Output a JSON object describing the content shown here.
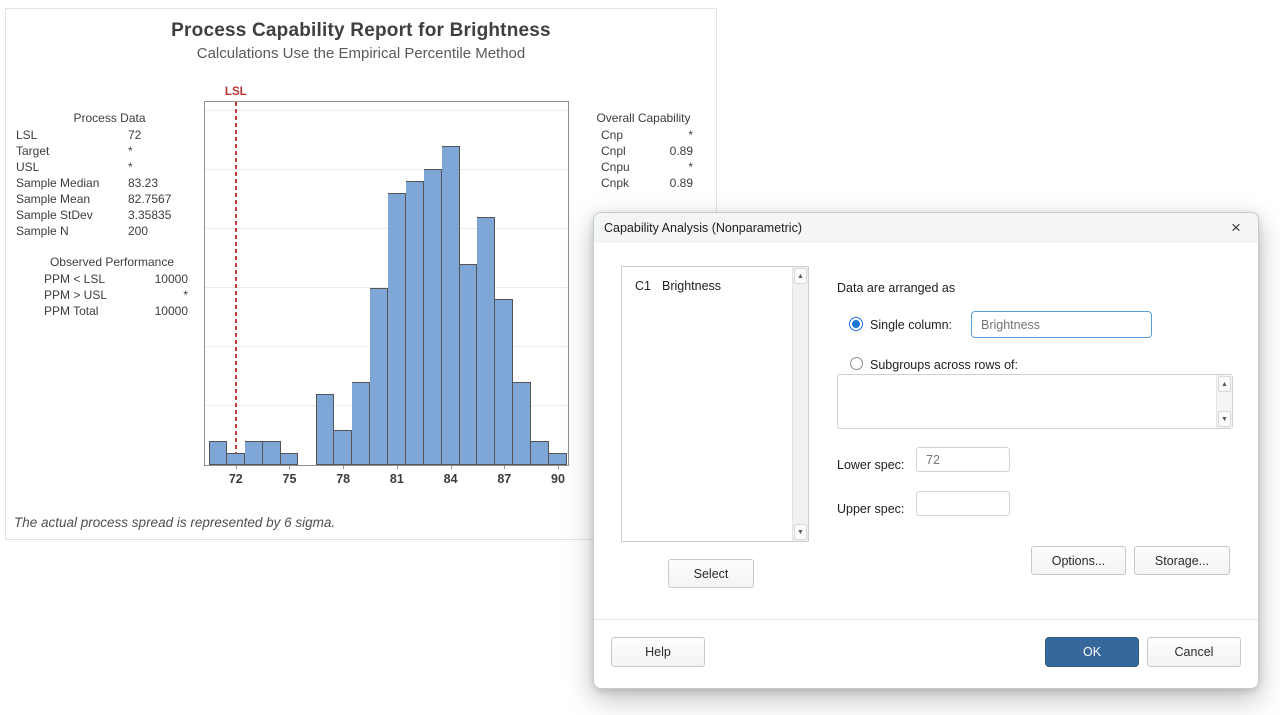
{
  "report": {
    "title": "Process Capability Report for Brightness",
    "subtitle": "Calculations Use the Empirical Percentile Method",
    "footnote": "The actual process spread is represented by 6 sigma.",
    "process_data": {
      "title": "Process Data",
      "rows": [
        [
          "LSL",
          "72"
        ],
        [
          "Target",
          "*"
        ],
        [
          "USL",
          "*"
        ],
        [
          "Sample Median",
          "83.23"
        ],
        [
          "Sample Mean",
          "82.7567"
        ],
        [
          "Sample StDev",
          "3.35835"
        ],
        [
          "Sample N",
          "200"
        ]
      ]
    },
    "observed_performance": {
      "title": "Observed Performance",
      "rows": [
        [
          "PPM < LSL",
          "10000"
        ],
        [
          "PPM > USL",
          "*"
        ],
        [
          "PPM Total",
          "10000"
        ]
      ]
    },
    "overall_capability": {
      "title": "Overall Capability",
      "rows": [
        [
          "Cnp",
          "*"
        ],
        [
          "Cnpl",
          "0.89"
        ],
        [
          "Cnpu",
          "*"
        ],
        [
          "Cnpk",
          "0.89"
        ]
      ]
    }
  },
  "chart_data": {
    "type": "bar",
    "title": "Process Capability Report for Brightness",
    "subtitle": "Calculations Use the Empirical Percentile Method",
    "xlabel": "",
    "ylabel": "",
    "bin_width": 1,
    "bin_centers": [
      71,
      72,
      73,
      74,
      75,
      76,
      77,
      78,
      79,
      80,
      81,
      82,
      83,
      84,
      85,
      86,
      87,
      88,
      89,
      90
    ],
    "frequencies": [
      2,
      1,
      2,
      2,
      1,
      0,
      6,
      3,
      7,
      15,
      23,
      24,
      25,
      27,
      17,
      21,
      14,
      7,
      2,
      1
    ],
    "total_n": 200,
    "x_ticks": [
      72,
      75,
      78,
      81,
      84,
      87,
      90
    ],
    "x_range": [
      70.28,
      90.56
    ],
    "y_range": [
      0,
      30.7
    ],
    "gridline_step": 5,
    "grid": "horizontal",
    "legend": "none",
    "reference_lines": [
      {
        "label": "LSL",
        "value": 72,
        "style": "dashed",
        "color": "#C43B3B"
      }
    ],
    "bar_fill": "#7EA7D8",
    "bar_border": "#545454"
  },
  "dialog": {
    "title": "Capability Analysis (Nonparametric)",
    "close_label": "×",
    "columns": [
      {
        "id": "C1",
        "name": "Brightness"
      }
    ],
    "select_button": "Select",
    "arranged_label": "Data are arranged as",
    "single_column_label": "Single column:",
    "single_column_value": "Brightness",
    "subgroups_label": "Subgroups across rows of:",
    "subgroups_value": "",
    "lower_spec_label": "Lower spec:",
    "lower_spec_value": "72",
    "upper_spec_label": "Upper spec:",
    "upper_spec_value": "",
    "options_button": "Options...",
    "storage_button": "Storage...",
    "help_button": "Help",
    "ok_button": "OK",
    "cancel_button": "Cancel",
    "accent_color": "#36689B",
    "focus_border_color": "#58A0DC",
    "radio_color": "#1F73D2",
    "scroll_up_glyph": "▲",
    "scroll_down_glyph": "▼"
  }
}
